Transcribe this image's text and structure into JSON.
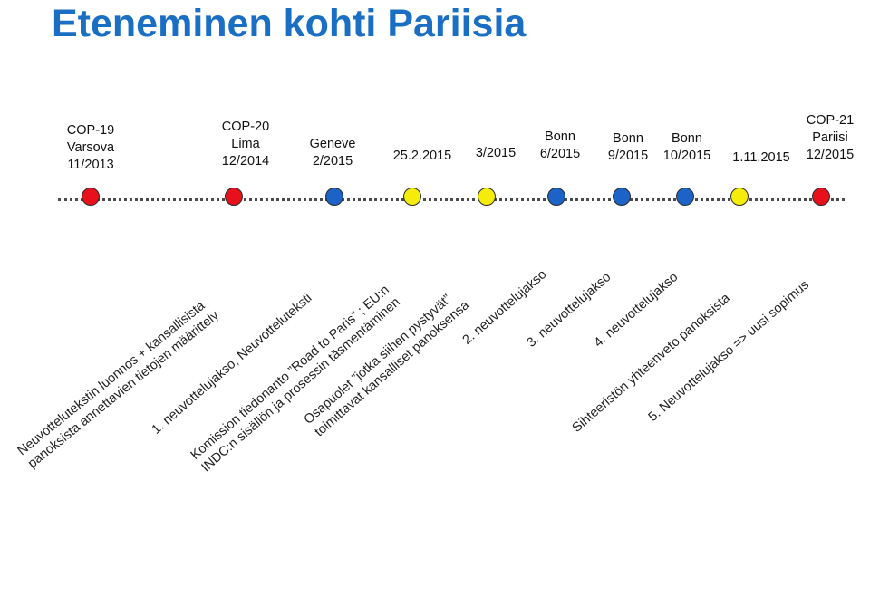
{
  "title": "Eteneminen kohti Pariisia",
  "colors": {
    "title": "#1a6fc4",
    "red": "#e8111b",
    "blue": "#1d63c7",
    "yellow": "#f6ec0c"
  },
  "milestones": [
    {
      "label_lines": [
        "COP-19",
        "Varsova",
        "11/2013"
      ],
      "marker": "red",
      "description_lines": [
        "Neuvottelutekstin luonnos + kansallisista",
        "panoksista annettavien tietojen määrittely"
      ]
    },
    {
      "label_lines": [
        "COP-20",
        "Lima",
        "12/2014"
      ],
      "marker": "red",
      "description_lines": [
        "1. neuvottelujakso, Neuvotteluteksti"
      ]
    },
    {
      "label_lines": [
        "Geneve",
        "2/2015"
      ],
      "marker": "blue",
      "description_lines": [
        "Komission tiedonanto ”Road to Paris” ; EU:n",
        "INDC:n sisällön ja prosessin täsmentäminen"
      ]
    },
    {
      "label_lines": [
        "25.2.2015"
      ],
      "marker": "yellow",
      "description_lines": [
        "Osapuolet ”jotka siihen pystyvät”",
        "toimittavat kansalliset panoksensa"
      ]
    },
    {
      "label_lines": [
        "3/2015"
      ],
      "marker": "yellow",
      "description_lines": []
    },
    {
      "label_lines": [
        "Bonn",
        "6/2015"
      ],
      "marker": "blue",
      "description_lines": [
        "2. neuvottelujakso"
      ]
    },
    {
      "label_lines": [
        "Bonn",
        "9/2015"
      ],
      "marker": "blue",
      "description_lines": [
        "3. neuvottelujakso"
      ]
    },
    {
      "label_lines": [
        "Bonn",
        "10/2015"
      ],
      "marker": "blue",
      "description_lines": [
        "4. neuvottelujakso"
      ]
    },
    {
      "label_lines": [
        "1.11.2015"
      ],
      "marker": "yellow",
      "description_lines": [
        "Sihteeristön yhteenveto panoksista"
      ]
    },
    {
      "label_lines": [
        "COP-21",
        "Pariisi",
        "12/2015"
      ],
      "marker": "red",
      "description_lines": [
        "5. Neuvottelujakso => uusi sopimus"
      ]
    }
  ]
}
